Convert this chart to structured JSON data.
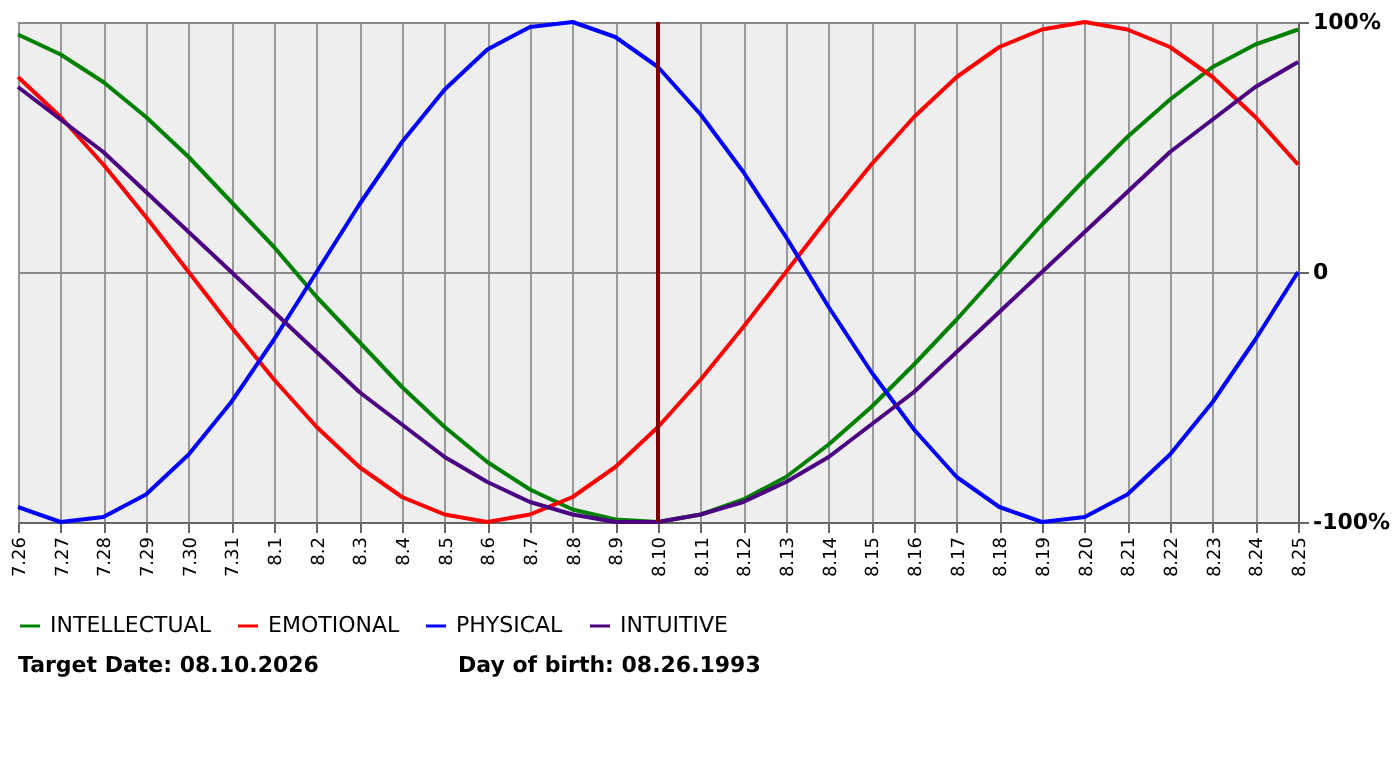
{
  "chart_data": {
    "type": "line",
    "categories": [
      "7.26",
      "7.27",
      "7.28",
      "7.29",
      "7.30",
      "7.31",
      "8.1",
      "8.2",
      "8.3",
      "8.4",
      "8.5",
      "8.6",
      "8.7",
      "8.8",
      "8.9",
      "8.10",
      "8.11",
      "8.12",
      "8.13",
      "8.14",
      "8.15",
      "8.16",
      "8.17",
      "8.18",
      "8.19",
      "8.20",
      "8.21",
      "8.22",
      "8.23",
      "8.24",
      "8.25"
    ],
    "series": [
      {
        "name": "INTELLECTUAL",
        "color": "#008000",
        "values": [
          95,
          87,
          76,
          62,
          46,
          28,
          10,
          -10,
          -28,
          -46,
          -62,
          -76,
          -87,
          -95,
          -99,
          -100,
          -97,
          -91,
          -82,
          -69,
          -54,
          -37,
          -19,
          0,
          19,
          37,
          54,
          69,
          82,
          91,
          97
        ]
      },
      {
        "name": "EMOTIONAL",
        "color": "#ff0000",
        "values": [
          78,
          62,
          43,
          22,
          0,
          -22,
          -43,
          -62,
          -78,
          -90,
          -97,
          -100,
          -97,
          -90,
          -78,
          -62,
          -43,
          -22,
          0,
          22,
          43,
          62,
          78,
          90,
          97,
          100,
          97,
          90,
          78,
          62,
          43
        ]
      },
      {
        "name": "PHYSICAL",
        "color": "#0000ff",
        "values": [
          -94,
          -100,
          -98,
          -89,
          -73,
          -52,
          -27,
          0,
          27,
          52,
          73,
          89,
          98,
          100,
          94,
          82,
          63,
          40,
          14,
          -14,
          -40,
          -63,
          -82,
          -94,
          -100,
          -98,
          -89,
          -73,
          -52,
          -27,
          0
        ]
      },
      {
        "name": "INTUITIVE",
        "color": "#4b0082",
        "values": [
          74,
          61,
          48,
          32,
          16,
          0,
          -16,
          -32,
          -48,
          -61,
          -74,
          -84,
          -92,
          -97,
          -100,
          -100,
          -97,
          -92,
          -84,
          -74,
          -61,
          -48,
          -32,
          -16,
          0,
          16,
          32,
          48,
          61,
          74,
          84
        ]
      }
    ],
    "ylim": [
      -100,
      100
    ],
    "yticks": [
      {
        "value": -100,
        "label": "-100%"
      },
      0,
      {
        "value": 100,
        "label": "100%"
      }
    ],
    "ref_lines": [
      {
        "axis": "x",
        "value": "8.10",
        "color": "#800000"
      }
    ],
    "annotations": [
      "Target Date: 08.10.2026",
      "Day of birth: 08.26.1993"
    ],
    "grid": true,
    "legend": "bottom",
    "marker": "none",
    "line_style": "solid"
  }
}
